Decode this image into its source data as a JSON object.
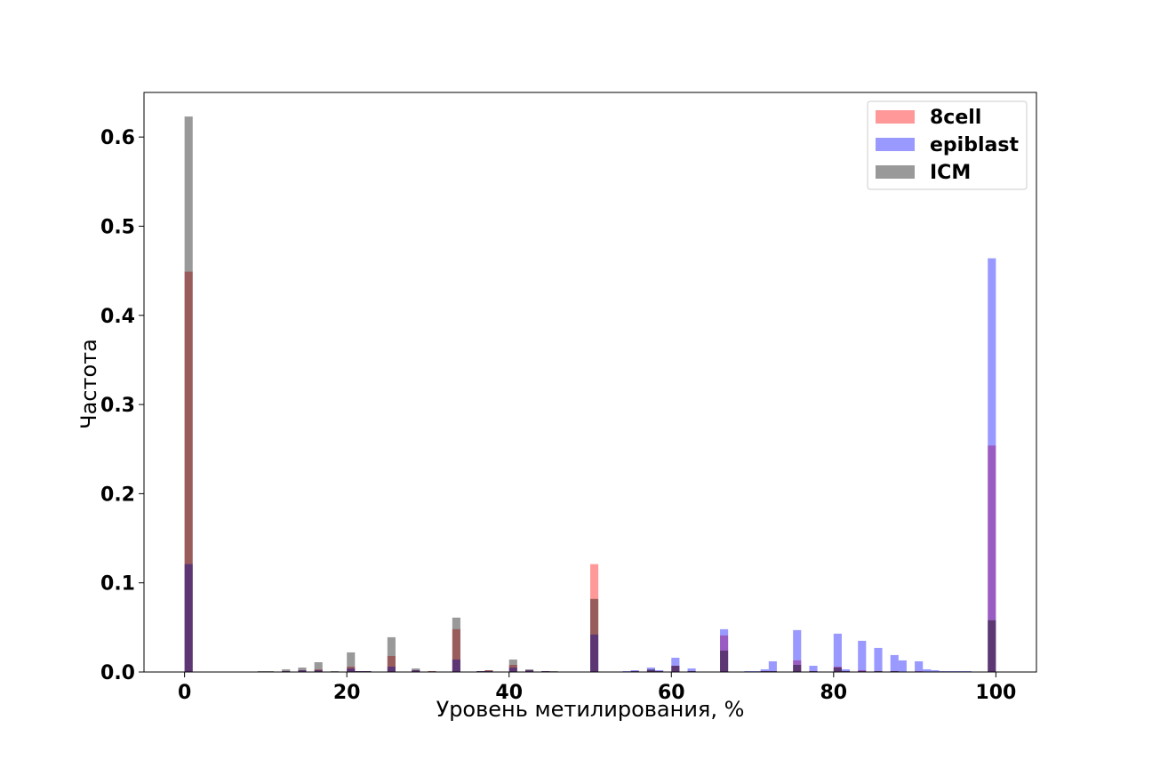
{
  "chart_data": {
    "type": "bar",
    "subtype": "overlaid-histogram",
    "title": "",
    "xlabel": "Уровень метилирования, %",
    "ylabel": "Частота",
    "xlim": [
      -5,
      105
    ],
    "ylim": [
      0,
      0.65
    ],
    "xticks": [
      0,
      20,
      40,
      60,
      80,
      100
    ],
    "yticks": [
      0.0,
      0.1,
      0.2,
      0.3,
      0.4,
      0.5,
      0.6
    ],
    "ytick_labels": [
      "0.0",
      "0.1",
      "0.2",
      "0.3",
      "0.4",
      "0.5",
      "0.6"
    ],
    "grid": false,
    "legend_position": "top-right",
    "bin_width": 1,
    "bin_starts": [
      0,
      9,
      10,
      12,
      14,
      16,
      18,
      20,
      21,
      22,
      25,
      28,
      30,
      33,
      36,
      37,
      40,
      42,
      44,
      45,
      50,
      54,
      55,
      57,
      58,
      60,
      62,
      66,
      69,
      70,
      71,
      72,
      75,
      77,
      80,
      81,
      83,
      85,
      87,
      88,
      90,
      91,
      92,
      93,
      94,
      95,
      96,
      99
    ],
    "series": [
      {
        "name": "8cell",
        "color": "#ff0000",
        "alpha": 0.4,
        "values": [
          0.449,
          0.0005,
          0.0005,
          0.001,
          0.002,
          0.003,
          0.0005,
          0.006,
          0.001,
          0.001,
          0.018,
          0.002,
          0.001,
          0.048,
          0.001,
          0.002,
          0.008,
          0.002,
          0.001,
          0.0005,
          0.121,
          0.0005,
          0.001,
          0.002,
          0.001,
          0.007,
          0.001,
          0.041,
          0.0005,
          0.0005,
          0.001,
          0.001,
          0.013,
          0.001,
          0.006,
          0.001,
          0.002,
          0.001,
          0.001,
          0.0005,
          0.001,
          0.0005,
          0.0005,
          0.0005,
          0.0005,
          0.0005,
          0.0005,
          0.254
        ]
      },
      {
        "name": "epiblast",
        "color": "#0000ff",
        "alpha": 0.4,
        "values": [
          0.121,
          0.0005,
          0.0005,
          0.001,
          0.002,
          0.002,
          0.0005,
          0.004,
          0.001,
          0.001,
          0.006,
          0.002,
          0.0005,
          0.014,
          0.001,
          0.001,
          0.005,
          0.002,
          0.001,
          0.0005,
          0.042,
          0.001,
          0.002,
          0.005,
          0.002,
          0.016,
          0.004,
          0.048,
          0.001,
          0.001,
          0.003,
          0.012,
          0.047,
          0.007,
          0.043,
          0.003,
          0.035,
          0.027,
          0.019,
          0.013,
          0.012,
          0.003,
          0.002,
          0.001,
          0.001,
          0.001,
          0.001,
          0.464
        ]
      },
      {
        "name": "ICM",
        "color": "#000000",
        "alpha": 0.4,
        "values": [
          0.623,
          0.001,
          0.001,
          0.003,
          0.005,
          0.011,
          0.001,
          0.022,
          0.001,
          0.001,
          0.039,
          0.004,
          0.001,
          0.061,
          0.001,
          0.002,
          0.014,
          0.003,
          0.001,
          0.001,
          0.082,
          0.0005,
          0.001,
          0.003,
          0.001,
          0.007,
          0.001,
          0.024,
          0.0005,
          0.0005,
          0.001,
          0.001,
          0.008,
          0.001,
          0.005,
          0.001,
          0.001,
          0.001,
          0.001,
          0.0005,
          0.0005,
          0.0005,
          0.0005,
          0.0005,
          0.0005,
          0.0005,
          0.0005,
          0.058
        ]
      }
    ]
  }
}
